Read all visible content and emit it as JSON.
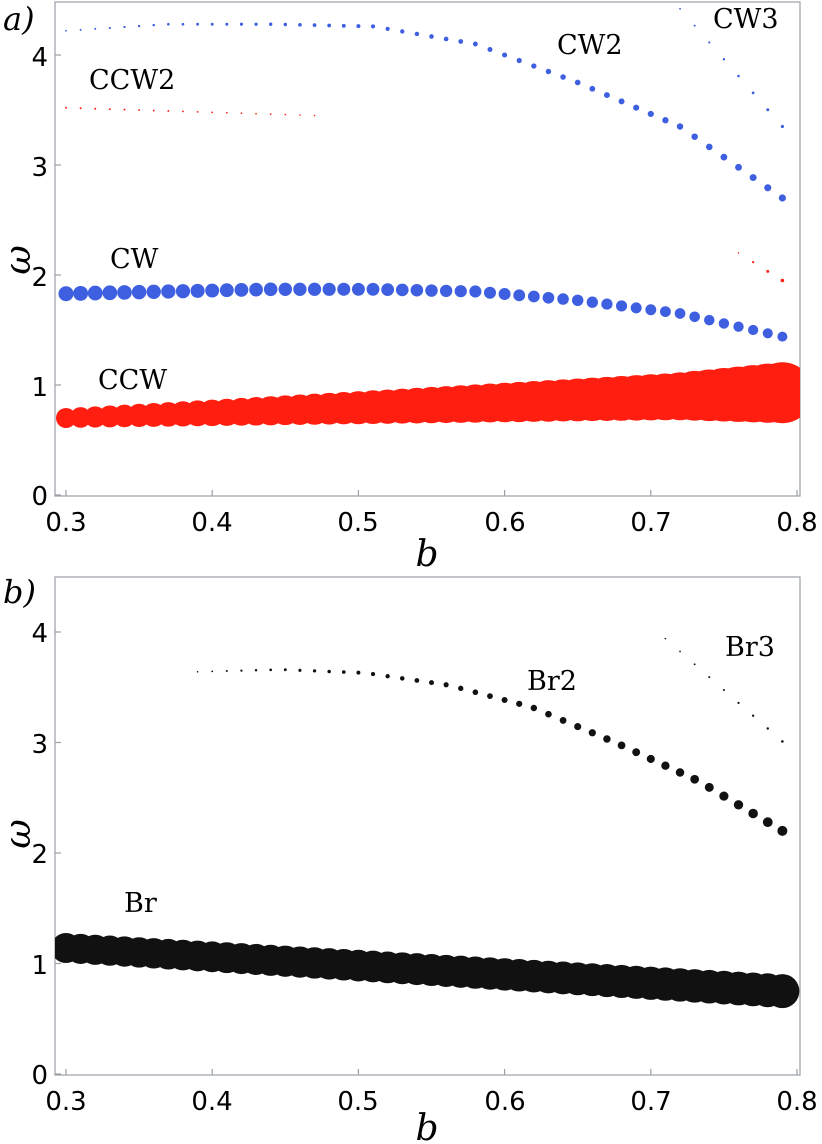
{
  "chart_data": [
    {
      "panel_label": "a)",
      "type": "scatter",
      "xlabel": "b",
      "ylabel": "ω",
      "xlim": [
        0.29,
        0.8
      ],
      "ylim": [
        0,
        4.5
      ],
      "xticks": [
        "0.3",
        "0.4",
        "0.5",
        "0.6",
        "0.7",
        "0.8"
      ],
      "yticks": [
        "0",
        "1",
        "2",
        "3",
        "4"
      ],
      "series": [
        {
          "name": "CCW",
          "color": "#ff1e10",
          "x_start": 0.3,
          "x_end": 0.79,
          "y_start": 0.7,
          "y_end": 0.93,
          "size_start": 10,
          "size_end": 26,
          "points": 50
        },
        {
          "name": "CW",
          "color": "#3d5fe0",
          "x_start": 0.3,
          "x_end": 0.79,
          "y": [
            1.83,
            1.85,
            1.87,
            1.87,
            1.85,
            1.77,
            1.65,
            1.44
          ],
          "size_start": 7.5,
          "size_end": 5,
          "points": 50
        },
        {
          "name": "CCW2",
          "color": "#ff1e10",
          "x_start": 0.3,
          "x_end": 0.47,
          "y_start": 3.52,
          "y_end": 3.45,
          "size_start": 1.0,
          "size_end": 0.8,
          "points": 18
        },
        {
          "name": "CW2",
          "color": "#3d5fe0",
          "x_start": 0.3,
          "x_end": 0.79,
          "y": [
            4.22,
            4.28,
            4.28,
            4.26,
            4.1,
            3.75,
            3.35,
            2.7
          ],
          "size_start": 0.9,
          "size_end": 3.6,
          "points": 50
        },
        {
          "name": "CW3",
          "color": "#3d5fe0",
          "x_start": 0.72,
          "x_end": 0.79,
          "y_start": 4.42,
          "y_end": 3.35,
          "size_start": 0.9,
          "size_end": 1.6,
          "points": 8
        },
        {
          "name": "",
          "color": "#ff1e10",
          "x_start": 0.76,
          "x_end": 0.79,
          "y_start": 2.2,
          "y_end": 1.95,
          "size_start": 0.8,
          "size_end": 1.8,
          "points": 4
        }
      ],
      "annotations": [
        "CCW",
        "CW",
        "CCW2",
        "CW2",
        "CW3"
      ]
    },
    {
      "panel_label": "b)",
      "type": "scatter",
      "xlabel": "b",
      "ylabel": "ω",
      "xlim": [
        0.29,
        0.8
      ],
      "ylim": [
        0,
        4.5
      ],
      "xticks": [
        "0.3",
        "0.4",
        "0.5",
        "0.6",
        "0.7",
        "0.8"
      ],
      "yticks": [
        "0",
        "1",
        "2",
        "3",
        "4"
      ],
      "series": [
        {
          "name": "Br",
          "color": "#111111",
          "x_start": 0.3,
          "x_end": 0.79,
          "y_start": 1.14,
          "y_end": 0.75,
          "size_start": 15,
          "size_end": 17,
          "points": 50
        },
        {
          "name": "Br2",
          "color": "#111111",
          "x_start": 0.39,
          "x_end": 0.79,
          "y": [
            3.64,
            3.66,
            3.63,
            3.52,
            3.32,
            3.0,
            2.65,
            2.2
          ],
          "size_start": 0.8,
          "size_end": 5,
          "points": 41
        },
        {
          "name": "Br3",
          "color": "#111111",
          "x_start": 0.71,
          "x_end": 0.79,
          "y_start": 3.94,
          "y_end": 3.01,
          "size_start": 0.8,
          "size_end": 1.3,
          "points": 9
        }
      ],
      "annotations": [
        "Br",
        "Br2",
        "Br3"
      ]
    }
  ]
}
